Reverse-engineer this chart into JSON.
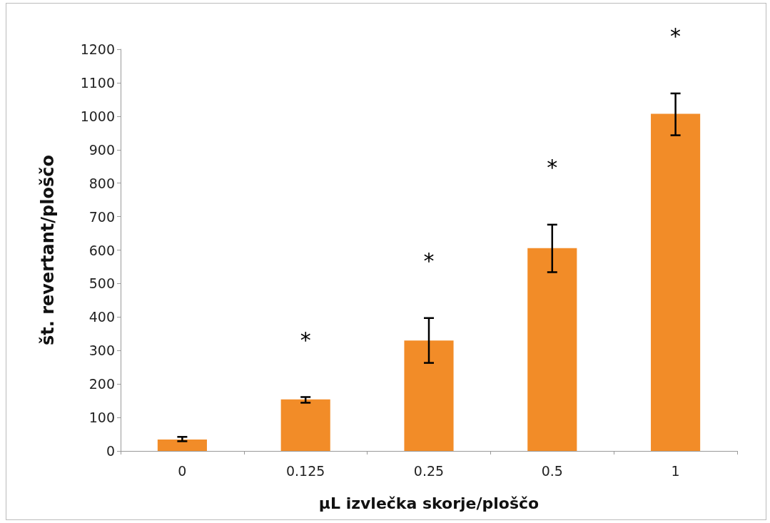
{
  "chart_data": {
    "type": "bar",
    "xlabel": "µL izvlečka skorje/ploščo",
    "ylabel": "št. revertant/ploščo",
    "categories": [
      "0",
      "0.125",
      "0.25",
      "0.5",
      "1"
    ],
    "values": [
      34,
      154,
      330,
      606,
      1007
    ],
    "errors": [
      [
        29,
        42
      ],
      [
        144,
        161
      ],
      [
        263,
        397
      ],
      [
        534,
        676
      ],
      [
        943,
        1068
      ]
    ],
    "color": "#f28c28",
    "ylim": [
      0,
      1200
    ],
    "yticks": [
      0,
      100,
      200,
      300,
      400,
      500,
      600,
      700,
      800,
      900,
      1000,
      1100,
      1200
    ],
    "grid": false,
    "annotations": [
      "*",
      "*",
      "*",
      "*"
    ]
  }
}
